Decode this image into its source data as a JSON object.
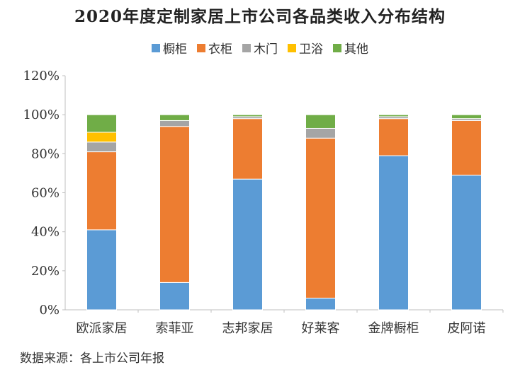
{
  "chart_data": {
    "type": "bar",
    "stacked": true,
    "title": "2020年度定制家居上市公司各品类收入分布结构",
    "categories": [
      "欧派家居",
      "索菲亚",
      "志邦家居",
      "好莱客",
      "金牌橱柜",
      "皮阿诺"
    ],
    "series": [
      {
        "name": "橱柜",
        "color": "#5B9BD5",
        "values": [
          41,
          14,
          67,
          6,
          79,
          69
        ]
      },
      {
        "name": "衣柜",
        "color": "#ED7D31",
        "values": [
          40,
          80,
          31,
          82,
          19,
          28
        ]
      },
      {
        "name": "木门",
        "color": "#A5A5A5",
        "values": [
          5,
          3,
          1,
          5,
          1,
          1
        ]
      },
      {
        "name": "卫浴",
        "color": "#FFC000",
        "values": [
          5,
          0,
          0,
          0,
          0,
          0
        ]
      },
      {
        "name": "其他",
        "color": "#70AD47",
        "values": [
          9,
          3,
          1,
          7,
          1,
          2
        ]
      }
    ],
    "ylim": [
      0,
      120
    ],
    "yticks": [
      "0%",
      "20%",
      "40%",
      "60%",
      "80%",
      "100%",
      "120%"
    ],
    "ytick_values": [
      0,
      20,
      40,
      60,
      80,
      100,
      120
    ],
    "legend_position": "top",
    "grid": false
  },
  "source": "数据来源：各上市公司年报"
}
